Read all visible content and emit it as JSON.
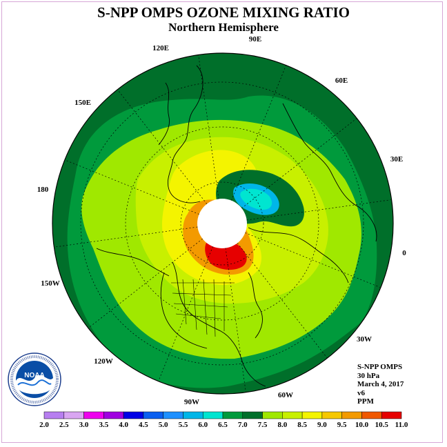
{
  "title": "S-NPP OMPS OZONE MIXING RATIO",
  "subtitle": "Northern Hemisphere",
  "longitude_labels": [
    "0",
    "30E",
    "60E",
    "90E",
    "120E",
    "150E",
    "180",
    "150W",
    "120W",
    "90W",
    "60W",
    "30W"
  ],
  "info": {
    "instrument": "S-NPP OMPS",
    "level": "30 hPa",
    "date": "March 4, 2017",
    "version": "v6",
    "units": "PPM"
  },
  "logo": {
    "text": "NOAA",
    "ring_text": "NATIONAL OCEANIC AND ATMOSPHERIC ADMINISTRATION · U.S. DEPARTMENT OF COMMERCE"
  },
  "colorbar": {
    "ticks": [
      "2.0",
      "2.5",
      "3.0",
      "3.5",
      "4.0",
      "4.5",
      "5.0",
      "5.5",
      "6.0",
      "6.5",
      "7.0",
      "7.5",
      "8.0",
      "8.5",
      "9.0",
      "9.5",
      "10.0",
      "10.5",
      "11.0"
    ],
    "colors": [
      "#b77ef0",
      "#d9a6f2",
      "#ee00ee",
      "#a000e0",
      "#0000e6",
      "#0a5ff0",
      "#1e90ff",
      "#00b6e8",
      "#00e5d0",
      "#009a3c",
      "#006f2a",
      "#a0e800",
      "#c8f000",
      "#f4f400",
      "#f6c800",
      "#f39a00",
      "#f05800",
      "#e60000",
      "#8b5a3c"
    ]
  },
  "colors": {
    "dark_green": "#006f2a",
    "mid_green": "#009a3c",
    "light_green": "#a0e800",
    "yellow_green": "#c8f000",
    "yellow": "#f4f400",
    "orange": "#f39a00",
    "red": "#e60000",
    "cyan": "#00e5d0",
    "pole_fill": "#ffffff"
  }
}
